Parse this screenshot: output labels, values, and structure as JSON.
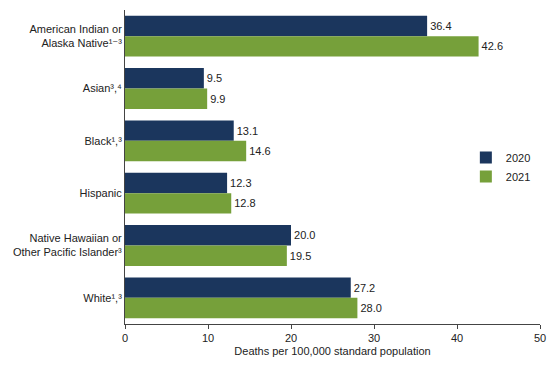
{
  "chart_data": {
    "type": "bar",
    "orientation": "horizontal",
    "categories": [
      "American Indian or Alaska Native¹⁻³",
      "Asian³,⁴",
      "Black¹,³",
      "Hispanic",
      "Native Hawaiian or Other Pacific Islander³",
      "White¹,³"
    ],
    "series": [
      {
        "name": "2020",
        "color": "#1b365d",
        "values": [
          36.4,
          9.5,
          13.1,
          12.3,
          20.0,
          27.2
        ],
        "value_labels": [
          "36.4",
          "9.5",
          "13.1",
          "12.3",
          "20.0",
          "27.2"
        ]
      },
      {
        "name": "2021",
        "color": "#76a03a",
        "values": [
          42.6,
          9.9,
          14.6,
          12.8,
          19.5,
          28.0
        ],
        "value_labels": [
          "42.6",
          "9.9",
          "14.6",
          "12.8",
          "19.5",
          "28.0"
        ]
      }
    ],
    "x_label": "Deaths per 100,000 standard population",
    "xlim": [
      0,
      50
    ],
    "xticks": [
      0,
      10,
      20,
      30,
      40,
      50
    ],
    "data_labels": true,
    "grid": false,
    "legend": "right"
  }
}
